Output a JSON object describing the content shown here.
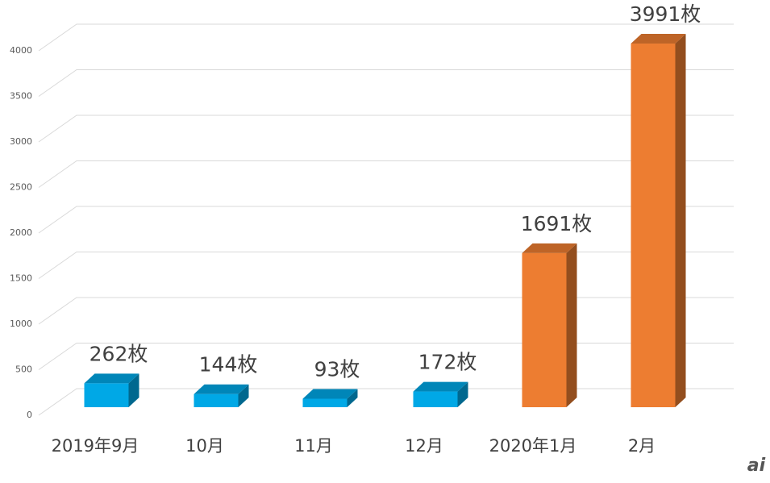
{
  "chart_data": {
    "type": "bar3d",
    "categories": [
      "2019年9月",
      "10月",
      "11月",
      "12月",
      "2020年1月",
      "2月"
    ],
    "values": [
      262,
      144,
      93,
      172,
      1691,
      3991
    ],
    "value_labels": [
      "262枚",
      "144枚",
      "93枚",
      "172枚",
      "1691枚",
      "3991枚"
    ],
    "colors": [
      "#00a8e6",
      "#00a8e6",
      "#00a8e6",
      "#00a8e6",
      "#ed7d31",
      "#ed7d31"
    ],
    "ylim": [
      0,
      4000
    ],
    "yticks": [
      0,
      500,
      1000,
      1500,
      2000,
      2500,
      3000,
      3500,
      4000
    ],
    "grid": true,
    "watermark": "ai"
  }
}
